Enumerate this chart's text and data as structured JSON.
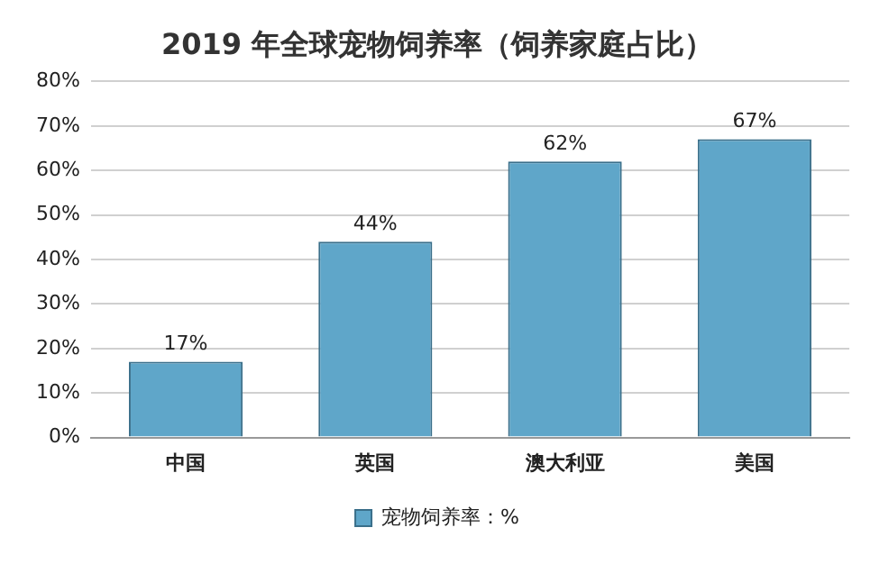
{
  "chart_data": {
    "type": "bar",
    "title": "2019 年全球宠物饲养率（饲养家庭占比）",
    "categories": [
      "中国",
      "英国",
      "澳大利亚",
      "美国"
    ],
    "series": [
      {
        "name": "宠物饲养率：%",
        "color": "#5fa6c9",
        "values": [
          17,
          44,
          62,
          67
        ],
        "value_labels": [
          "17%",
          "44%",
          "62%",
          "67%"
        ]
      }
    ],
    "ylim": [
      0,
      80
    ],
    "yticks": [
      {
        "value": 0,
        "label": "0%"
      },
      {
        "value": 10,
        "label": "10%"
      },
      {
        "value": 20,
        "label": "20%"
      },
      {
        "value": 30,
        "label": "30%"
      },
      {
        "value": 40,
        "label": "40%"
      },
      {
        "value": 50,
        "label": "50%"
      },
      {
        "value": 60,
        "label": "60%"
      },
      {
        "value": 70,
        "label": "70%"
      },
      {
        "value": 80,
        "label": "80%"
      }
    ],
    "grid": "y",
    "legend": "bottom"
  }
}
